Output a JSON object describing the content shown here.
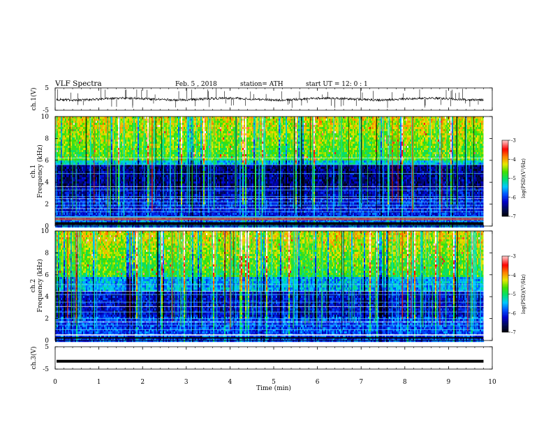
{
  "header": {
    "title": "VLF  Spectra",
    "date": "Feb. 5  , 2018",
    "station": "station= ATH",
    "start": "start  UT  =    12: 0   : 1"
  },
  "chart_data": [
    {
      "type": "line",
      "panel": "ch1-waveform",
      "ylabel": "ch.1(V)",
      "ylim": [
        -5,
        5
      ],
      "yticks": [
        -5,
        5
      ],
      "xlim": [
        0,
        10
      ],
      "baseline": 0,
      "grid": false
    },
    {
      "type": "heatmap",
      "panel": "ch1-spectrogram",
      "ylabel": "ch.1\nFrequency (kHz)",
      "ylim": [
        0,
        10
      ],
      "yticks": [
        0,
        2,
        4,
        6,
        8,
        10
      ],
      "xlim": [
        0,
        10
      ],
      "data_end_min": 9.8,
      "colorbar": {
        "label": "log(PSD)(V²/Hz)",
        "ticks": [
          -7,
          -6,
          -5,
          -4,
          -3
        ],
        "range": [
          -7,
          -3
        ]
      }
    },
    {
      "type": "heatmap",
      "panel": "ch2-spectrogram",
      "ylabel": "ch.2\nFrequency (kHz)",
      "ylim": [
        0,
        10
      ],
      "yticks": [
        0,
        2,
        4,
        6,
        8,
        10
      ],
      "xlim": [
        0,
        10
      ],
      "data_end_min": 9.8,
      "colorbar": {
        "label": "log(PSD)(V²/Hz)",
        "ticks": [
          -7,
          -6,
          -5,
          -4,
          -3
        ],
        "range": [
          -7,
          -3
        ]
      }
    },
    {
      "type": "line",
      "panel": "ch3-waveform",
      "ylabel": "ch.3(V)",
      "ylim": [
        -5,
        5
      ],
      "yticks": [
        -5,
        5
      ],
      "xlim": [
        0,
        10
      ],
      "baseline": -1.5,
      "grid": false
    }
  ],
  "xaxis": {
    "label": "Time  (min)",
    "ticks": [
      0,
      1,
      2,
      3,
      4,
      5,
      6,
      7,
      8,
      9,
      10
    ]
  },
  "colors": {
    "colormap": [
      "#000000",
      "#000a55",
      "#0000c8",
      "#0050ff",
      "#00c8ff",
      "#00e070",
      "#40e000",
      "#e8e800",
      "#ff8000",
      "#ff0000",
      "#ffb0b0",
      "#ffffff"
    ]
  }
}
